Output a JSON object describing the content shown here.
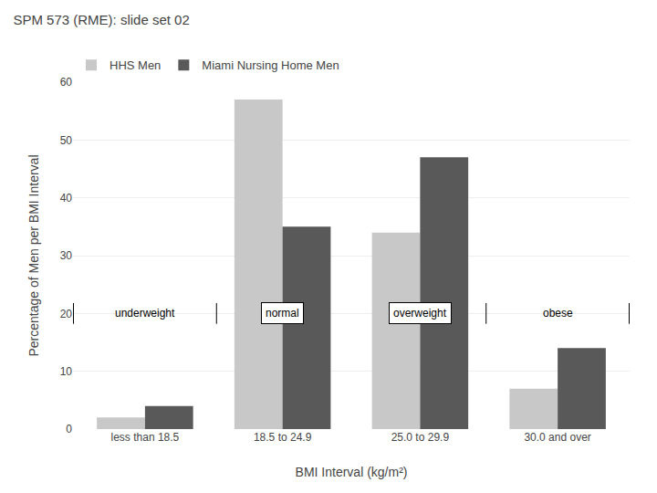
{
  "chart_data": {
    "type": "bar",
    "title": "SPM 573 (RME): slide set 02",
    "categories": [
      "less than 18.5",
      "18.5 to 24.9",
      "25.0 to 29.9",
      "30.0 and over"
    ],
    "series": [
      {
        "name": "HHS Men",
        "color": "#c8c8c8",
        "values": [
          2,
          57,
          34,
          7
        ]
      },
      {
        "name": "Miami Nursing Home Men",
        "color": "#595959",
        "values": [
          4,
          35,
          47,
          14
        ]
      }
    ],
    "xlabel": "BMI Interval (kg/m²)",
    "ylabel": "Percentage of Men per BMI Interval",
    "ylim": [
      0,
      60
    ],
    "yticks": [
      0,
      10,
      20,
      30,
      40,
      50,
      60
    ],
    "grid": true,
    "legend": "upper left",
    "annotations": [
      {
        "text": "underweight",
        "x": "less than 18.5",
        "y": 20
      },
      {
        "text": "normal",
        "x": "18.5 to 24.9",
        "y": 20
      },
      {
        "text": "overweight",
        "x": "25.0 to 29.9",
        "y": 20
      },
      {
        "text": "obese",
        "x": "30.0 and over",
        "y": 20
      }
    ]
  }
}
